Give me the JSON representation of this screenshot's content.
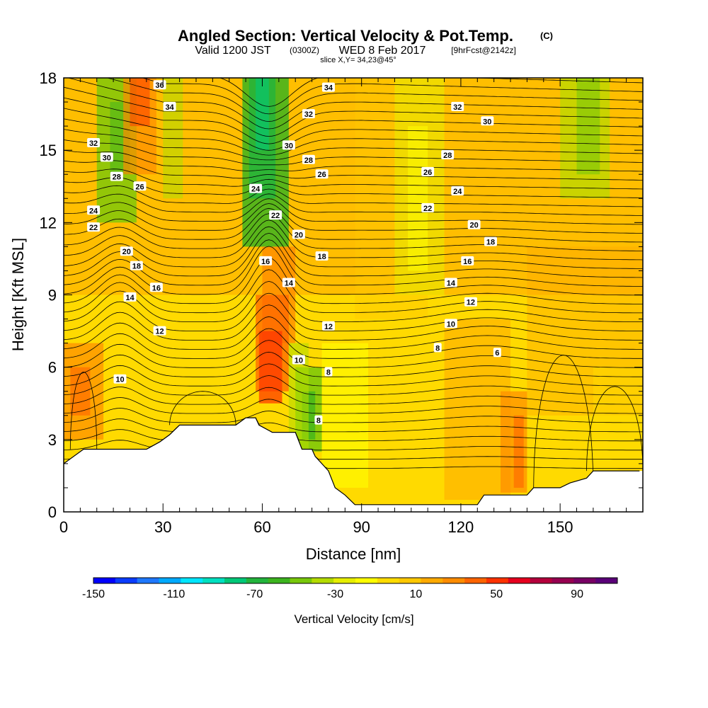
{
  "header": {
    "title": "Angled Section: Vertical Velocity & Pot.Temp.",
    "title_suffix": "(C)",
    "sub_a": "Valid 1200 JST",
    "sub_b": "(0300Z)",
    "sub_c": "WED 8 Feb 2017",
    "sub_d": "[9hrFcst@2142z]",
    "sub_e": "slice X,Y= 34,23@45°"
  },
  "chart_data": {
    "type": "heatmap",
    "xlabel": "Distance [nm]",
    "ylabel": "Height [Kft MSL]",
    "xlim": [
      0,
      175
    ],
    "ylim": [
      0,
      18
    ],
    "x_ticks": [
      "0",
      "30",
      "60",
      "90",
      "120",
      "150"
    ],
    "y_ticks": [
      "0",
      "3",
      "6",
      "9",
      "12",
      "15",
      "18"
    ],
    "colorbar": {
      "title": "Vertical Velocity [cm/s]",
      "tick_labels": [
        "-150",
        "-110",
        "-70",
        "-30",
        "10",
        "50",
        "90"
      ],
      "colors": [
        "#0000ff",
        "#0a3cff",
        "#1e78ff",
        "#00aaff",
        "#00e6ff",
        "#00e0c0",
        "#00c878",
        "#22b43c",
        "#3cb41e",
        "#78c80a",
        "#b4dc00",
        "#e6ee00",
        "#ffff00",
        "#ffdc00",
        "#ffc800",
        "#ffaa00",
        "#ff8c00",
        "#ff6400",
        "#ff3200",
        "#e6001e",
        "#b4003c",
        "#960050",
        "#780064",
        "#5a0078"
      ]
    },
    "terrain": [
      [
        0,
        2.0
      ],
      [
        3,
        2.3
      ],
      [
        6,
        2.6
      ],
      [
        10,
        2.6
      ],
      [
        15,
        2.6
      ],
      [
        20,
        2.6
      ],
      [
        25,
        2.6
      ],
      [
        29,
        2.9
      ],
      [
        32,
        3.2
      ],
      [
        35,
        3.6
      ],
      [
        40,
        3.6
      ],
      [
        45,
        3.6
      ],
      [
        50,
        3.6
      ],
      [
        52,
        3.6
      ],
      [
        55,
        3.9
      ],
      [
        58,
        3.9
      ],
      [
        59,
        3.6
      ],
      [
        63,
        3.3
      ],
      [
        66,
        3.3
      ],
      [
        70,
        3.3
      ],
      [
        72,
        2.6
      ],
      [
        75,
        2.6
      ],
      [
        76,
        2.3
      ],
      [
        78,
        2.0
      ],
      [
        80,
        1.7
      ],
      [
        82,
        1.0
      ],
      [
        85,
        0.7
      ],
      [
        88,
        0.3
      ],
      [
        95,
        0.3
      ],
      [
        105,
        0.3
      ],
      [
        115,
        0.3
      ],
      [
        125,
        0.3
      ],
      [
        127,
        0.7
      ],
      [
        135,
        0.7
      ],
      [
        140,
        0.7
      ],
      [
        142,
        1.0
      ],
      [
        150,
        1.0
      ],
      [
        153,
        1.2
      ],
      [
        158,
        1.4
      ],
      [
        160,
        1.7
      ],
      [
        170,
        1.7
      ],
      [
        174,
        1.7
      ]
    ],
    "contour_labels": [
      {
        "text": "36",
        "x": 29,
        "y": 17.7
      },
      {
        "text": "34",
        "x": 32,
        "y": 16.8
      },
      {
        "text": "34",
        "x": 80,
        "y": 17.6
      },
      {
        "text": "32",
        "x": 9,
        "y": 15.3
      },
      {
        "text": "32",
        "x": 74,
        "y": 16.5
      },
      {
        "text": "32",
        "x": 119,
        "y": 16.8
      },
      {
        "text": "30",
        "x": 13,
        "y": 14.7
      },
      {
        "text": "30",
        "x": 68,
        "y": 15.2
      },
      {
        "text": "30",
        "x": 128,
        "y": 16.2
      },
      {
        "text": "28",
        "x": 16,
        "y": 13.9
      },
      {
        "text": "28",
        "x": 74,
        "y": 14.6
      },
      {
        "text": "28",
        "x": 116,
        "y": 14.8
      },
      {
        "text": "26",
        "x": 23,
        "y": 13.5
      },
      {
        "text": "26",
        "x": 78,
        "y": 14.0
      },
      {
        "text": "26",
        "x": 110,
        "y": 14.1
      },
      {
        "text": "24",
        "x": 9,
        "y": 12.5
      },
      {
        "text": "24",
        "x": 58,
        "y": 13.4
      },
      {
        "text": "24",
        "x": 119,
        "y": 13.3
      },
      {
        "text": "22",
        "x": 9,
        "y": 11.8
      },
      {
        "text": "22",
        "x": 64,
        "y": 12.3
      },
      {
        "text": "22",
        "x": 110,
        "y": 12.6
      },
      {
        "text": "20",
        "x": 19,
        "y": 10.8
      },
      {
        "text": "20",
        "x": 71,
        "y": 11.5
      },
      {
        "text": "20",
        "x": 124,
        "y": 11.9
      },
      {
        "text": "18",
        "x": 22,
        "y": 10.2
      },
      {
        "text": "18",
        "x": 78,
        "y": 10.6
      },
      {
        "text": "18",
        "x": 129,
        "y": 11.2
      },
      {
        "text": "16",
        "x": 28,
        "y": 9.3
      },
      {
        "text": "16",
        "x": 61,
        "y": 10.4
      },
      {
        "text": "16",
        "x": 122,
        "y": 10.4
      },
      {
        "text": "14",
        "x": 20,
        "y": 8.9
      },
      {
        "text": "14",
        "x": 68,
        "y": 9.5
      },
      {
        "text": "14",
        "x": 117,
        "y": 9.5
      },
      {
        "text": "12",
        "x": 29,
        "y": 7.5
      },
      {
        "text": "12",
        "x": 80,
        "y": 7.7
      },
      {
        "text": "12",
        "x": 123,
        "y": 8.7
      },
      {
        "text": "10",
        "x": 17,
        "y": 5.5
      },
      {
        "text": "10",
        "x": 71,
        "y": 6.3
      },
      {
        "text": "10",
        "x": 117,
        "y": 7.8
      },
      {
        "text": "8",
        "x": 80,
        "y": 5.8
      },
      {
        "text": "8",
        "x": 113,
        "y": 6.8
      },
      {
        "text": "8",
        "x": 77,
        "y": 3.8
      },
      {
        "text": "6",
        "x": 131,
        "y": 6.6
      }
    ]
  }
}
